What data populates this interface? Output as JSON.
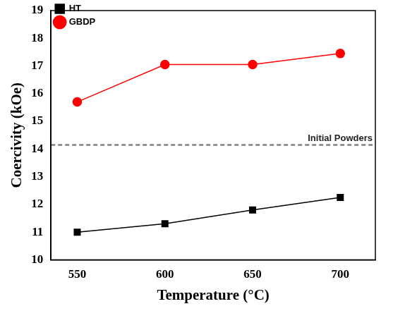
{
  "chart_data": {
    "type": "line",
    "x_label": "Temperature (°C)",
    "y_label": "Coercivity (kOe)",
    "x": [
      550,
      600,
      650,
      700
    ],
    "series": [
      {
        "name": "HT",
        "color": "#000000",
        "marker": "square",
        "line_style": "solid",
        "values": [
          11.0,
          11.3,
          11.8,
          12.25
        ]
      },
      {
        "name": "GBDP",
        "color": "#ff0000",
        "marker": "circle",
        "line_style": "solid",
        "values": [
          15.7,
          17.05,
          17.05,
          17.45
        ]
      }
    ],
    "reference_lines": [
      {
        "label": "Initial Powders",
        "value": 14.15,
        "color": "#808080",
        "line_style": "dashed"
      }
    ],
    "xlim": [
      535,
      720
    ],
    "xticks": [
      550,
      600,
      650,
      700
    ],
    "ylim": [
      10,
      19
    ],
    "yticks": [
      10,
      11,
      12,
      13,
      14,
      15,
      16,
      17,
      18,
      19
    ],
    "grid": false,
    "legend": "top-left"
  }
}
